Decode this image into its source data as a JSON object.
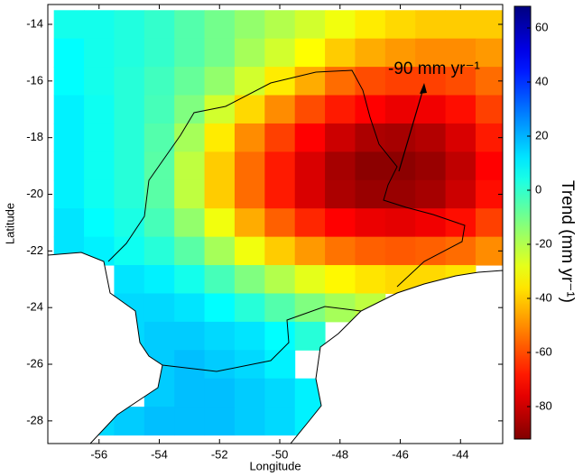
{
  "chart_data": {
    "type": "heatmap",
    "x_label": "Longitude",
    "y_label": "Latitude",
    "colorbar_label": "Trend (mm yr⁻¹)",
    "annotation": "-90 mm yr⁻¹",
    "colormap": "jet_r",
    "x": [
      -57,
      -56,
      -55,
      -54,
      -53,
      -52,
      -51,
      -50,
      -49,
      -48,
      -47,
      -46,
      -45,
      -44,
      -43
    ],
    "y": [
      -14,
      -15,
      -16,
      -17,
      -18,
      -19,
      -20,
      -21,
      -22,
      -23,
      -24,
      -25,
      -26,
      -27,
      -28
    ],
    "z": [
      [
        5,
        5,
        3,
        0,
        -5,
        -10,
        -15,
        -20,
        -25,
        -30,
        -35,
        -38,
        -40,
        -40,
        -40
      ],
      [
        8,
        5,
        3,
        0,
        -5,
        -10,
        -18,
        -25,
        -32,
        -40,
        -45,
        -48,
        -50,
        -50,
        -48
      ],
      [
        8,
        5,
        2,
        -2,
        -8,
        -15,
        -25,
        -35,
        -45,
        -55,
        -60,
        -62,
        -62,
        -60,
        -55
      ],
      [
        10,
        6,
        2,
        -3,
        -12,
        -25,
        -38,
        -50,
        -60,
        -68,
        -72,
        -75,
        -74,
        -70,
        -62
      ],
      [
        10,
        6,
        2,
        -5,
        -18,
        -35,
        -50,
        -62,
        -72,
        -80,
        -85,
        -86,
        -84,
        -78,
        -68
      ],
      [
        10,
        6,
        2,
        -6,
        -22,
        -40,
        -55,
        -68,
        -78,
        -86,
        -90,
        -90,
        -88,
        -82,
        -72
      ],
      [
        10,
        6,
        2,
        -6,
        -22,
        -40,
        -55,
        -68,
        -78,
        -85,
        -88,
        -88,
        -86,
        -80,
        -70
      ],
      [
        12,
        8,
        4,
        -3,
        -15,
        -30,
        -45,
        -57,
        -66,
        -72,
        -75,
        -76,
        -74,
        -70,
        -62
      ],
      [
        12,
        10,
        6,
        2,
        -6,
        -18,
        -30,
        -40,
        -48,
        -54,
        -57,
        -58,
        -57,
        -55,
        -50
      ],
      [
        null,
        null,
        12,
        10,
        5,
        -3,
        -12,
        -20,
        -28,
        -33,
        -36,
        -38,
        -38,
        -36,
        null
      ],
      [
        null,
        null,
        14,
        14,
        12,
        8,
        2,
        -5,
        -12,
        -18,
        -22,
        null,
        null,
        null,
        null
      ],
      [
        null,
        null,
        14,
        16,
        16,
        14,
        12,
        8,
        2,
        null,
        null,
        null,
        null,
        null,
        null
      ],
      [
        null,
        null,
        14,
        16,
        18,
        16,
        14,
        10,
        null,
        null,
        null,
        null,
        null,
        null,
        null
      ],
      [
        null,
        null,
        null,
        16,
        18,
        18,
        16,
        14,
        10,
        null,
        null,
        null,
        null,
        null,
        null
      ],
      [
        null,
        14,
        16,
        18,
        18,
        18,
        16,
        14,
        10,
        null,
        null,
        null,
        null,
        null,
        null
      ]
    ],
    "xlim": [
      -57.7,
      -42.6
    ],
    "ylim": [
      -28.8,
      -13.3
    ],
    "xticks": [
      -56,
      -54,
      -52,
      -50,
      -48,
      -46,
      -44
    ],
    "yticks": [
      -14,
      -16,
      -18,
      -20,
      -22,
      -24,
      -26,
      -28
    ],
    "clim": [
      -92,
      68
    ],
    "cticks": [
      -80,
      -60,
      -40,
      -20,
      0,
      20,
      40,
      60
    ]
  }
}
